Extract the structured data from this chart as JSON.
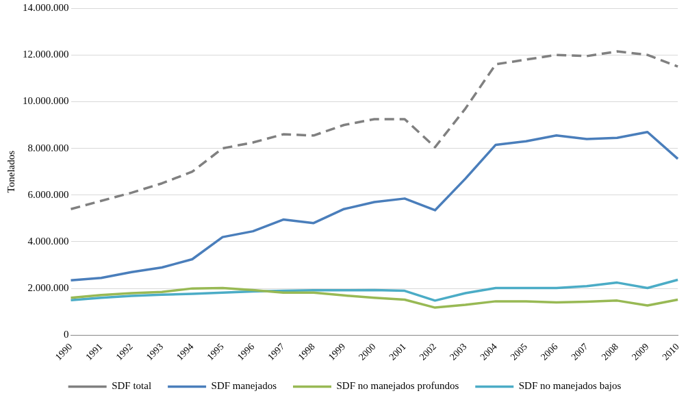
{
  "chart_data": {
    "type": "line",
    "ylabel": "Tonelados",
    "categories": [
      "1990",
      "1991",
      "1992",
      "1993",
      "1994",
      "1995",
      "1996",
      "1997",
      "1998",
      "1999",
      "2000",
      "2001",
      "2002",
      "2003",
      "2004",
      "2005",
      "2006",
      "2007",
      "2008",
      "2009",
      "2010"
    ],
    "series": [
      {
        "name": "SDF total",
        "color": "#808080",
        "line_style": "dashed",
        "values": [
          5400000,
          5750000,
          6100000,
          6500000,
          7000000,
          8000000,
          8250000,
          8600000,
          8550000,
          9000000,
          9250000,
          9250000,
          8050000,
          9700000,
          11600000,
          11800000,
          12000000,
          11950000,
          12150000,
          12000000,
          11500000
        ]
      },
      {
        "name": "SDF manejados",
        "color": "#4a7ebb",
        "values": [
          2350000,
          2450000,
          2700000,
          2900000,
          3250000,
          4200000,
          4450000,
          4950000,
          4800000,
          5400000,
          5700000,
          5850000,
          5350000,
          6700000,
          8150000,
          8300000,
          8550000,
          8400000,
          8450000,
          8700000,
          7550000
        ]
      },
      {
        "name": "SDF no manejados profundos",
        "color": "#98b954",
        "values": [
          1600000,
          1720000,
          1800000,
          1850000,
          2000000,
          2020000,
          1930000,
          1820000,
          1820000,
          1700000,
          1600000,
          1520000,
          1180000,
          1300000,
          1450000,
          1450000,
          1400000,
          1430000,
          1480000,
          1270000,
          1520000
        ]
      },
      {
        "name": "SDF no manejados bajos",
        "color": "#4bacc6",
        "values": [
          1500000,
          1600000,
          1680000,
          1730000,
          1770000,
          1820000,
          1870000,
          1900000,
          1920000,
          1920000,
          1930000,
          1900000,
          1480000,
          1800000,
          2020000,
          2020000,
          2020000,
          2100000,
          2250000,
          2020000,
          2370000
        ]
      }
    ],
    "ylim": [
      0,
      14000000
    ],
    "yticks": [
      {
        "value": 0,
        "label": "0"
      },
      {
        "value": 2000000,
        "label": "2.000.000"
      },
      {
        "value": 4000000,
        "label": "4.000.000"
      },
      {
        "value": 6000000,
        "label": "6.000.000"
      },
      {
        "value": 8000000,
        "label": "8.000.000"
      },
      {
        "value": 10000000,
        "label": "10.000.000"
      },
      {
        "value": 12000000,
        "label": "12.000.000"
      },
      {
        "value": 14000000,
        "label": "14.000.000"
      }
    ],
    "grid": "y",
    "legend": "bottom",
    "marker": "none",
    "line_style": "solid"
  }
}
